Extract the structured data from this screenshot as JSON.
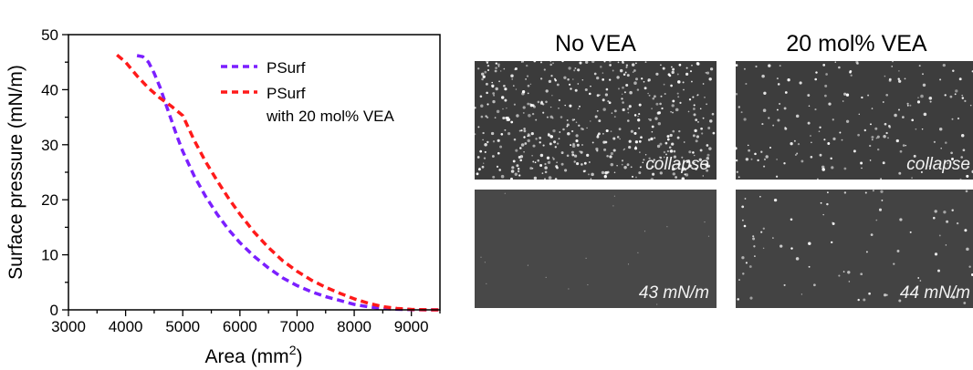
{
  "chart_data": {
    "type": "line",
    "xlabel": "Area (mm",
    "xlabel_sup": "2",
    "xlabel_end": ")",
    "ylabel": "Surface pressure (mN/m)",
    "xlim": [
      3000,
      9500
    ],
    "ylim": [
      0,
      50
    ],
    "xticks": [
      "3000",
      "4000",
      "5000",
      "6000",
      "7000",
      "8000",
      "9000"
    ],
    "yticks": [
      "0",
      "10",
      "20",
      "30",
      "40",
      "50"
    ],
    "legend_position": "top-right",
    "series": [
      {
        "name": "PSurf",
        "color": "#7b1fff",
        "style": "dashed",
        "points": [
          [
            4200,
            46.2
          ],
          [
            4300,
            46.0
          ],
          [
            4400,
            45.0
          ],
          [
            4500,
            43.0
          ],
          [
            4600,
            40.5
          ],
          [
            4700,
            37.5
          ],
          [
            4800,
            34.5
          ],
          [
            4900,
            31.5
          ],
          [
            5000,
            28.8
          ],
          [
            5200,
            24.3
          ],
          [
            5400,
            20.6
          ],
          [
            5600,
            17.4
          ],
          [
            5800,
            14.6
          ],
          [
            6000,
            12.2
          ],
          [
            6250,
            9.7
          ],
          [
            6500,
            7.6
          ],
          [
            6750,
            5.8
          ],
          [
            7000,
            4.4
          ],
          [
            7250,
            3.3
          ],
          [
            7500,
            2.4
          ],
          [
            7750,
            1.7
          ],
          [
            8000,
            1.0
          ],
          [
            8250,
            0.55
          ],
          [
            8500,
            0.25
          ],
          [
            8750,
            0.1
          ],
          [
            9000,
            0.03
          ],
          [
            9250,
            0.0
          ],
          [
            9500,
            0.0
          ]
        ]
      },
      {
        "name": "PSurf with 20 mol% VEA",
        "legend_lines": [
          "PSurf",
          "with 20 mol% VEA"
        ],
        "color": "#ff1a1a",
        "style": "dashed",
        "points": [
          [
            3850,
            46.3
          ],
          [
            4000,
            45.0
          ],
          [
            4200,
            42.5
          ],
          [
            4400,
            40.3
          ],
          [
            4600,
            38.5
          ],
          [
            4800,
            37.0
          ],
          [
            5000,
            35.3
          ],
          [
            5200,
            30.8
          ],
          [
            5400,
            26.9
          ],
          [
            5600,
            23.5
          ],
          [
            5800,
            20.3
          ],
          [
            6000,
            17.4
          ],
          [
            6250,
            14.1
          ],
          [
            6500,
            11.3
          ],
          [
            6750,
            8.9
          ],
          [
            7000,
            7.0
          ],
          [
            7250,
            5.4
          ],
          [
            7500,
            4.1
          ],
          [
            7750,
            3.0
          ],
          [
            8000,
            2.0
          ],
          [
            8250,
            1.2
          ],
          [
            8500,
            0.6
          ],
          [
            8750,
            0.25
          ],
          [
            9000,
            0.08
          ],
          [
            9250,
            0.02
          ],
          [
            9500,
            0.0
          ]
        ]
      }
    ]
  },
  "images": {
    "columns": [
      "No VEA",
      "20 mol% VEA"
    ],
    "panels": [
      {
        "label": "collapse",
        "density": "high",
        "row": 0,
        "col": 0
      },
      {
        "label": "collapse",
        "density": "medium",
        "row": 0,
        "col": 1
      },
      {
        "label": "43 mN/m",
        "density": "sparse",
        "row": 1,
        "col": 0
      },
      {
        "label": "44 mN/m",
        "density": "low",
        "row": 1,
        "col": 1
      }
    ]
  }
}
